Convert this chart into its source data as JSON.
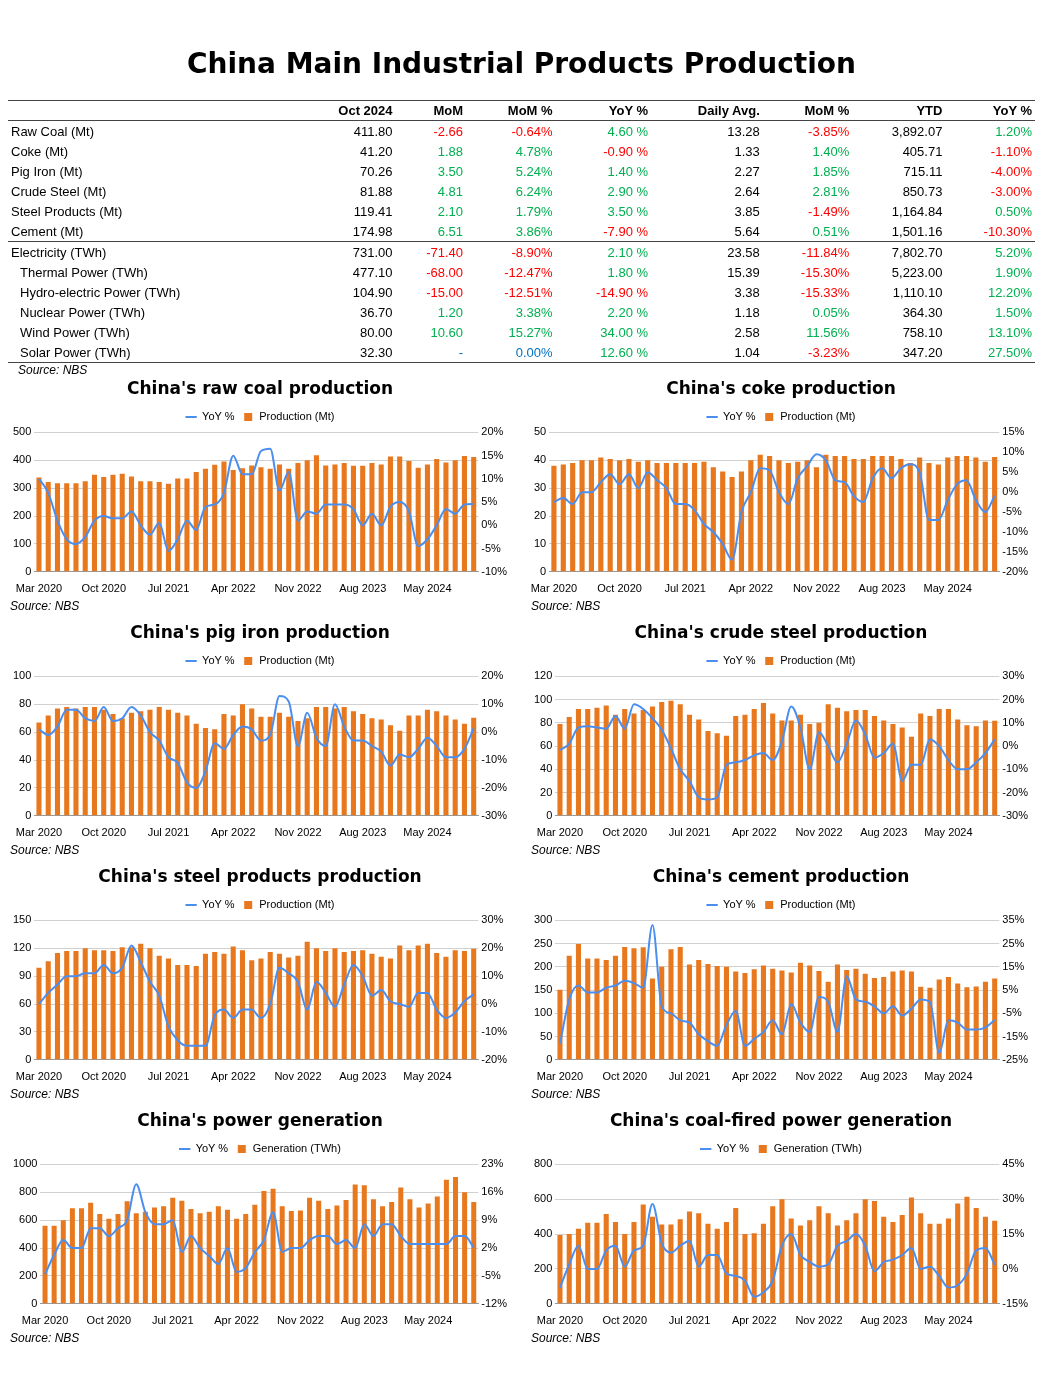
{
  "chart_data": [
    {
      "type": "other",
      "title": "China Main Industrial Products Production",
      "annotations": [
        "Source: NBS"
      ],
      "categories": [
        "Oct 2024",
        "MoM",
        "MoM %",
        "YoY %",
        "Daily Avg.",
        "MoM %",
        "YTD",
        "YoY %"
      ],
      "y_categories": [
        "Raw Coal (Mt)",
        "Coke (Mt)",
        "Pig Iron (Mt)",
        "Crude Steel (Mt)",
        "Steel Products (Mt)",
        "Cement (Mt)",
        "Electricity (TWh)",
        "Thermal Power (TWh)",
        "Hydro-electric Power (TWh)",
        "Nuclear Power (TWh)",
        "Wind Power (TWh)",
        "Solar Power (TWh)"
      ],
      "cell_labels": [
        [
          "411.80",
          "-2.66",
          "-0.64%",
          "4.60 %",
          "13.28",
          "-3.85%",
          "3,892.07",
          "1.20%"
        ],
        [
          "41.20",
          "1.88",
          "4.78%",
          "-0.90 %",
          "1.33",
          "1.40%",
          "405.71",
          "-1.10%"
        ],
        [
          "70.26",
          "3.50",
          "5.24%",
          "1.40 %",
          "2.27",
          "1.85%",
          "715.11",
          "-4.00%"
        ],
        [
          "81.88",
          "4.81",
          "6.24%",
          "2.90 %",
          "2.64",
          "2.81%",
          "850.73",
          "-3.00%"
        ],
        [
          "119.41",
          "2.10",
          "1.79%",
          "3.50 %",
          "3.85",
          "-1.49%",
          "1,164.84",
          "0.50%"
        ],
        [
          "174.98",
          "6.51",
          "3.86%",
          "-7.90 %",
          "5.64",
          "0.51%",
          "1,501.16",
          "-10.30%"
        ],
        [
          "731.00",
          "-71.40",
          "-8.90%",
          "2.10 %",
          "23.58",
          "-11.84%",
          "7,802.70",
          "5.20%"
        ],
        [
          "477.10",
          "-68.00",
          "-12.47%",
          "1.80 %",
          "15.39",
          "-15.30%",
          "5,223.00",
          "1.90%"
        ],
        [
          "104.90",
          "-15.00",
          "-12.51%",
          "-14.90 %",
          "3.38",
          "-15.33%",
          "1,110.10",
          "12.20%"
        ],
        [
          "36.70",
          "1.20",
          "3.38%",
          "2.20 %",
          "1.18",
          "0.05%",
          "364.30",
          "1.50%"
        ],
        [
          "80.00",
          "10.60",
          "15.27%",
          "34.00 %",
          "2.58",
          "11.56%",
          "758.10",
          "13.10%"
        ],
        [
          "32.30",
          "-",
          "0.00%",
          "12.60 %",
          "1.04",
          "-3.23%",
          "347.20",
          "27.50%"
        ]
      ],
      "colors": [
        [
          "#000000",
          "#ff0000",
          "#ff0000",
          "#00b050",
          "#000000",
          "#ff0000",
          "#000000",
          "#00b050"
        ],
        [
          "#000000",
          "#00b050",
          "#00b050",
          "#ff0000",
          "#000000",
          "#00b050",
          "#000000",
          "#ff0000"
        ],
        [
          "#000000",
          "#00b050",
          "#00b050",
          "#00b050",
          "#000000",
          "#00b050",
          "#000000",
          "#ff0000"
        ],
        [
          "#000000",
          "#00b050",
          "#00b050",
          "#00b050",
          "#000000",
          "#00b050",
          "#000000",
          "#ff0000"
        ],
        [
          "#000000",
          "#00b050",
          "#00b050",
          "#00b050",
          "#000000",
          "#ff0000",
          "#000000",
          "#00b050"
        ],
        [
          "#000000",
          "#00b050",
          "#00b050",
          "#ff0000",
          "#000000",
          "#00b050",
          "#000000",
          "#ff0000"
        ],
        [
          "#000000",
          "#ff0000",
          "#ff0000",
          "#00b050",
          "#000000",
          "#ff0000",
          "#000000",
          "#00b050"
        ],
        [
          "#000000",
          "#ff0000",
          "#ff0000",
          "#00b050",
          "#000000",
          "#ff0000",
          "#000000",
          "#00b050"
        ],
        [
          "#000000",
          "#ff0000",
          "#ff0000",
          "#ff0000",
          "#000000",
          "#ff0000",
          "#000000",
          "#00b050"
        ],
        [
          "#000000",
          "#00b050",
          "#00b050",
          "#00b050",
          "#000000",
          "#00b050",
          "#000000",
          "#00b050"
        ],
        [
          "#000000",
          "#00b050",
          "#00b050",
          "#00b050",
          "#000000",
          "#00b050",
          "#000000",
          "#00b050"
        ],
        [
          "#000000",
          "#0070c0",
          "#0070c0",
          "#00b050",
          "#000000",
          "#ff0000",
          "#000000",
          "#00b050"
        ]
      ]
    },
    {
      "type": "bar",
      "title": "China's raw coal production",
      "annotations": [
        "Source: NBS"
      ],
      "legend": "top",
      "grid": "y",
      "marker": "none",
      "categories": [
        "Mar 2020",
        null,
        null,
        null,
        null,
        null,
        null,
        "Oct 2020",
        null,
        null,
        null,
        null,
        null,
        null,
        "Jul 2021",
        null,
        null,
        null,
        null,
        null,
        null,
        "Apr 2022",
        null,
        null,
        null,
        null,
        null,
        null,
        "Nov 2022",
        null,
        null,
        null,
        null,
        null,
        null,
        "Aug 2023",
        null,
        null,
        null,
        null,
        null,
        null,
        "May 2024",
        null,
        null,
        null,
        null,
        null
      ],
      "ylim": [
        0,
        500
      ],
      "yticks": [
        0,
        100,
        200,
        300,
        400,
        500
      ],
      "y2lim": [
        -10,
        20
      ],
      "y2ticks": [
        {
          "value": -10,
          "label": "-10%"
        },
        {
          "value": -5,
          "label": "-5%"
        },
        {
          "value": 0,
          "label": "0%"
        },
        {
          "value": 5,
          "label": "5%"
        },
        {
          "value": 10,
          "label": "10%"
        },
        {
          "value": 15,
          "label": "15%"
        },
        {
          "value": 20,
          "label": "20%"
        }
      ],
      "series": [
        {
          "name": "Production (Mt)",
          "color": "#e8781e",
          "values": [
            338,
            322,
            318,
            318,
            318,
            325,
            348,
            340,
            348,
            352,
            342,
            325,
            325,
            322,
            316,
            335,
            335,
            358,
            370,
            384,
            396,
            365,
            371,
            381,
            375,
            370,
            385,
            370,
            390,
            400,
            418,
            381,
            385,
            390,
            380,
            380,
            390,
            385,
            414,
            414,
            397,
            373,
            385,
            405,
            392,
            400,
            415,
            411.8
          ]
        },
        {
          "name": "YoY %",
          "type": "line",
          "axis": "y2",
          "color": "#4a8ef0",
          "values": [
            10,
            7,
            1,
            -3,
            -4,
            -2.5,
            1,
            2,
            1.5,
            1.5,
            3,
            0,
            -2,
            0.5,
            -5.5,
            -3,
            1,
            -1,
            4,
            4.5,
            7,
            15,
            11,
            11,
            16,
            16.5,
            7.5,
            11.5,
            1,
            3,
            2.5,
            4.5,
            4.5,
            4.5,
            3.5,
            0,
            2.5,
            0,
            4,
            5,
            3,
            -4.5,
            -3,
            0,
            3.5,
            2.5,
            4.5,
            4.6
          ]
        }
      ]
    },
    {
      "type": "bar",
      "title": "China's coke production",
      "annotations": [
        "Source: NBS"
      ],
      "legend": "top",
      "grid": "y",
      "marker": "none",
      "categories": [
        "Mar 2020",
        null,
        null,
        null,
        null,
        null,
        null,
        "Oct 2020",
        null,
        null,
        null,
        null,
        null,
        null,
        "Jul 2021",
        null,
        null,
        null,
        null,
        null,
        null,
        "Apr 2022",
        null,
        null,
        null,
        null,
        null,
        null,
        "Nov 2022",
        null,
        null,
        null,
        null,
        null,
        null,
        "Aug 2023",
        null,
        null,
        null,
        null,
        null,
        null,
        "May 2024",
        null,
        null,
        null,
        null,
        null
      ],
      "ylim": [
        0,
        50
      ],
      "yticks": [
        0,
        10,
        20,
        30,
        40,
        50
      ],
      "y2lim": [
        -20,
        15
      ],
      "y2ticks": [
        {
          "value": -20,
          "label": "-20%"
        },
        {
          "value": -15,
          "label": "-15%"
        },
        {
          "value": -10,
          "label": "-10%"
        },
        {
          "value": -5,
          "label": "-5%"
        },
        {
          "value": 0,
          "label": "0%"
        },
        {
          "value": 5,
          "label": "5%"
        },
        {
          "value": 10,
          "label": "10%"
        },
        {
          "value": 15,
          "label": "15%"
        }
      ],
      "series": [
        {
          "name": "Production (Mt)",
          "color": "#e8781e",
          "values": [
            38,
            38.5,
            39,
            40,
            40,
            41,
            40.5,
            40,
            40.5,
            39.5,
            40,
            39,
            39,
            39,
            39,
            39,
            39.5,
            37.5,
            36,
            34,
            36,
            40,
            42,
            41.5,
            40,
            39,
            39.5,
            40,
            37.5,
            42,
            41.5,
            41.5,
            40.5,
            40.5,
            41.5,
            41.5,
            41.5,
            40.5,
            39,
            41,
            39,
            38.5,
            41,
            41.5,
            41.5,
            41,
            39.5,
            41.2
          ]
        },
        {
          "name": "YoY %",
          "type": "line",
          "axis": "y2",
          "color": "#4a8ef0",
          "values": [
            -2.5,
            -1.5,
            -3,
            0,
            0,
            2.5,
            4.5,
            2,
            4.5,
            1,
            5,
            3,
            1,
            -3,
            -3,
            -4.5,
            -8,
            -10,
            -13,
            -17,
            -5,
            0,
            6,
            5.5,
            0,
            -3,
            3.5,
            6.5,
            9.5,
            8,
            3,
            2.5,
            -1,
            -2.5,
            3.5,
            6,
            3.5,
            6,
            7,
            5,
            -7,
            -7,
            -2,
            2,
            3,
            -2,
            -5,
            -0.9
          ]
        }
      ]
    },
    {
      "type": "bar",
      "title": "China's pig iron production",
      "annotations": [
        "Source: NBS"
      ],
      "legend": "top",
      "grid": "y",
      "marker": "none",
      "categories": [
        "Mar 2020",
        null,
        null,
        null,
        null,
        null,
        null,
        "Oct 2020",
        null,
        null,
        null,
        null,
        null,
        null,
        "Jul 2021",
        null,
        null,
        null,
        null,
        null,
        null,
        "Apr 2022",
        null,
        null,
        null,
        null,
        null,
        null,
        "Nov 2022",
        null,
        null,
        null,
        null,
        null,
        null,
        "Aug 2023",
        null,
        null,
        null,
        null,
        null,
        null,
        "May 2024",
        null,
        null,
        null,
        null,
        null
      ],
      "ylim": [
        0,
        100
      ],
      "yticks": [
        0,
        20,
        40,
        60,
        80,
        100
      ],
      "y2lim": [
        -30,
        20
      ],
      "y2ticks": [
        {
          "value": -30,
          "label": "-30%"
        },
        {
          "value": -20,
          "label": "-20%"
        },
        {
          "value": -10,
          "label": "-10%"
        },
        {
          "value": 0,
          "label": "0%"
        },
        {
          "value": 10,
          "label": "10%"
        },
        {
          "value": 20,
          "label": "20%"
        }
      ],
      "series": [
        {
          "name": "Production (Mt)",
          "color": "#e8781e",
          "values": [
            67,
            72,
            77,
            78,
            77,
            78,
            78,
            76,
            73,
            70,
            74,
            75,
            76,
            78,
            76,
            74,
            72,
            66,
            63,
            62,
            73,
            72,
            80,
            77,
            71,
            71,
            74,
            71,
            68,
            70,
            78,
            78,
            77,
            78,
            75,
            73,
            70,
            69,
            65,
            61,
            72,
            72,
            76,
            75,
            72,
            69,
            66,
            70.26
          ]
        },
        {
          "name": "YoY %",
          "type": "line",
          "axis": "y2",
          "color": "#4a8ef0",
          "values": [
            1,
            -1,
            2,
            8,
            8,
            5,
            4,
            9,
            4,
            5,
            9,
            6,
            0,
            -3,
            -9,
            -11,
            -18,
            -20,
            -14,
            -4,
            -6,
            -1,
            2,
            1,
            -3,
            -1,
            13,
            11,
            -5,
            7,
            -2,
            -5,
            10,
            2,
            -3,
            -3,
            -5,
            -7,
            -12,
            -8,
            -9,
            -6,
            -2,
            -5,
            -9,
            -9,
            -6,
            1.4
          ]
        }
      ]
    },
    {
      "type": "bar",
      "title": "China's crude steel production",
      "annotations": [
        "Source: NBS"
      ],
      "legend": "top",
      "grid": "y",
      "marker": "none",
      "categories": [
        "Mar 2020",
        null,
        null,
        null,
        null,
        null,
        null,
        "Oct 2020",
        null,
        null,
        null,
        null,
        null,
        null,
        "Jul 2021",
        null,
        null,
        null,
        null,
        null,
        null,
        "Apr 2022",
        null,
        null,
        null,
        null,
        null,
        null,
        "Nov 2022",
        null,
        null,
        null,
        null,
        null,
        null,
        "Aug 2023",
        null,
        null,
        null,
        null,
        null,
        null,
        "May 2024",
        null,
        null,
        null,
        null,
        null
      ],
      "ylim": [
        0,
        120
      ],
      "yticks": [
        0,
        20,
        40,
        60,
        80,
        100,
        120
      ],
      "y2lim": [
        -30,
        30
      ],
      "y2ticks": [
        {
          "value": -30,
          "label": "-30%"
        },
        {
          "value": -20,
          "label": "-20%"
        },
        {
          "value": -10,
          "label": "-10%"
        },
        {
          "value": 0,
          "label": "0%"
        },
        {
          "value": 10,
          "label": "10%"
        },
        {
          "value": 20,
          "label": "20%"
        },
        {
          "value": 30,
          "label": "30%"
        }
      ],
      "series": [
        {
          "name": "Production (Mt)",
          "color": "#e8781e",
          "values": [
            79,
            85,
            92,
            92,
            93,
            95,
            87,
            92,
            88,
            91,
            94,
            98,
            99,
            96,
            87,
            83,
            73,
            71,
            69,
            86,
            87,
            92,
            97,
            88,
            82,
            82,
            87,
            79,
            80,
            96,
            93,
            90,
            91,
            91,
            86,
            82,
            79,
            76,
            68,
            88,
            86,
            92,
            92,
            83,
            78,
            77,
            82,
            81.88
          ]
        },
        {
          "name": "YoY %",
          "type": "line",
          "axis": "y2",
          "color": "#4a8ef0",
          "values": [
            -1.7,
            1,
            8,
            8.5,
            8,
            7.5,
            13,
            7.5,
            18,
            16,
            12,
            7,
            -1,
            -10,
            -15,
            -22,
            -23,
            -22,
            -8,
            -7,
            -6,
            -4,
            -3,
            -6,
            2,
            17,
            8,
            -10,
            6,
            0,
            -7,
            1,
            11,
            5,
            -5,
            -3,
            1,
            -15,
            -8,
            -8,
            3,
            0,
            -6,
            -10,
            -10,
            -7,
            -3,
            2.9
          ]
        }
      ]
    },
    {
      "type": "bar",
      "title": "China's steel products production",
      "annotations": [
        "Source: NBS"
      ],
      "legend": "top",
      "grid": "y",
      "marker": "none",
      "categories": [
        "Mar 2020",
        null,
        null,
        null,
        null,
        null,
        null,
        "Oct 2020",
        null,
        null,
        null,
        null,
        null,
        null,
        "Jul 2021",
        null,
        null,
        null,
        null,
        null,
        null,
        "Apr 2022",
        null,
        null,
        null,
        null,
        null,
        null,
        "Nov 2022",
        null,
        null,
        null,
        null,
        null,
        null,
        "Aug 2023",
        null,
        null,
        null,
        null,
        null,
        null,
        "May 2024",
        null,
        null,
        null,
        null,
        null
      ],
      "ylim": [
        0,
        150
      ],
      "yticks": [
        0,
        30,
        60,
        90,
        120,
        150
      ],
      "y2lim": [
        -20,
        30
      ],
      "y2ticks": [
        {
          "value": -20,
          "label": "-20%"
        },
        {
          "value": -10,
          "label": "-10%"
        },
        {
          "value": 0,
          "label": "0%"
        },
        {
          "value": 10,
          "label": "10%"
        },
        {
          "value": 20,
          "label": "20%"
        },
        {
          "value": 30,
          "label": "30%"
        }
      ],
      "series": [
        {
          "name": "Production (Mt)",
          "color": "#e8781e",
          "values": [
            99,
            106,
            115,
            117,
            117,
            120,
            118,
            118,
            117,
            121,
            121,
            125,
            120,
            112,
            109,
            102,
            102,
            101,
            114,
            116,
            114,
            122,
            118,
            107,
            109,
            116,
            114,
            110,
            112,
            127,
            120,
            117,
            120,
            116,
            117,
            118,
            114,
            111,
            109,
            123,
            118,
            123,
            125,
            115,
            111,
            118,
            117,
            119.41
          ]
        },
        {
          "name": "YoY %",
          "type": "line",
          "axis": "y2",
          "color": "#4a8ef0",
          "values": [
            0,
            4,
            7,
            10,
            10,
            11,
            11,
            14,
            11,
            13,
            21,
            15,
            8,
            3,
            -8,
            -13,
            -15,
            -15,
            -15,
            -4,
            -2,
            -5,
            -2,
            -2,
            -5,
            0,
            13,
            11,
            8,
            -2,
            8,
            4,
            -1,
            7,
            14,
            10,
            3,
            5,
            1,
            0,
            -1,
            4,
            4,
            -2,
            -5,
            -3,
            1,
            3.5
          ]
        }
      ]
    },
    {
      "type": "bar",
      "title": "China's cement production",
      "annotations": [
        "Source: NBS"
      ],
      "legend": "top",
      "grid": "y",
      "marker": "none",
      "categories": [
        "Mar 2020",
        null,
        null,
        null,
        null,
        null,
        null,
        "Oct 2020",
        null,
        null,
        null,
        null,
        null,
        null,
        "Jul 2021",
        null,
        null,
        null,
        null,
        null,
        null,
        "Apr 2022",
        null,
        null,
        null,
        null,
        null,
        null,
        "Nov 2022",
        null,
        null,
        null,
        null,
        null,
        null,
        "Aug 2023",
        null,
        null,
        null,
        null,
        null,
        null,
        "May 2024",
        null,
        null,
        null,
        null,
        null
      ],
      "ylim": [
        0,
        300
      ],
      "yticks": [
        0,
        50,
        100,
        150,
        200,
        250,
        300
      ],
      "y2lim": [
        -25,
        35
      ],
      "y2ticks": [
        {
          "value": -25,
          "label": "-25%"
        },
        {
          "value": -15,
          "label": "-15%"
        },
        {
          "value": -5,
          "label": "-5%"
        },
        {
          "value": 5,
          "label": "5%"
        },
        {
          "value": 15,
          "label": "15%"
        },
        {
          "value": 25,
          "label": "25%"
        },
        {
          "value": 35,
          "label": "35%"
        }
      ],
      "series": [
        {
          "name": "Production (Mt)",
          "color": "#e8781e",
          "values": [
            151,
            224,
            249,
            218,
            218,
            215,
            224,
            243,
            240,
            242,
            175,
            200,
            238,
            243,
            205,
            215,
            206,
            202,
            200,
            190,
            187,
            195,
            203,
            196,
            192,
            188,
            209,
            203,
            191,
            168,
            205,
            193,
            196,
            185,
            176,
            178,
            190,
            192,
            190,
            157,
            155,
            173,
            178,
            164,
            156,
            158,
            168,
            174.98
          ]
        },
        {
          "name": "YoY %",
          "type": "line",
          "axis": "y2",
          "color": "#4a8ef0",
          "values": [
            -18,
            1,
            7,
            4,
            4,
            6,
            7,
            9,
            8,
            6,
            33,
            -2,
            -5,
            -8,
            -9,
            -14,
            -17,
            -19,
            -10,
            -4,
            -19,
            -16,
            -13,
            -8,
            -14,
            -1,
            -9,
            -13,
            2,
            0,
            -13,
            11,
            1,
            0,
            -2,
            -5,
            -2,
            -6,
            -3,
            1,
            0,
            -22,
            -8,
            -9,
            -12,
            -12,
            -11,
            -7.9
          ]
        }
      ]
    },
    {
      "type": "bar",
      "title": "China's power generation",
      "annotations": [
        "Source: NBS"
      ],
      "legend": "top",
      "grid": "y",
      "marker": "none",
      "categories": [
        "Mar 2020",
        null,
        null,
        null,
        null,
        null,
        null,
        "Oct 2020",
        null,
        null,
        null,
        null,
        null,
        null,
        "Jul 2021",
        null,
        null,
        null,
        null,
        null,
        null,
        "Apr 2022",
        null,
        null,
        null,
        null,
        null,
        null,
        "Nov 2022",
        null,
        null,
        null,
        null,
        null,
        null,
        "Aug 2023",
        null,
        null,
        null,
        null,
        null,
        null,
        "May 2024",
        null,
        null,
        null,
        null,
        null
      ],
      "ylim": [
        0,
        1000
      ],
      "yticks": [
        0,
        200,
        400,
        600,
        800,
        1000
      ],
      "y2lim": [
        -12,
        23
      ],
      "y2ticks": [
        {
          "value": -12,
          "label": "-12%"
        },
        {
          "value": -5,
          "label": "-5%"
        },
        {
          "value": 2,
          "label": "2%"
        },
        {
          "value": 9,
          "label": "9%"
        },
        {
          "value": 16,
          "label": "16%"
        },
        {
          "value": 23,
          "label": "23%"
        }
      ],
      "series": [
        {
          "name": "Generation (TWh)",
          "color": "#e8781e",
          "values": [
            560,
            560,
            600,
            685,
            685,
            725,
            645,
            610,
            645,
            735,
            650,
            660,
            690,
            700,
            760,
            740,
            680,
            650,
            660,
            700,
            675,
            610,
            645,
            710,
            810,
            825,
            700,
            665,
            670,
            760,
            740,
            680,
            705,
            745,
            855,
            850,
            750,
            700,
            730,
            835,
            750,
            690,
            720,
            770,
            890,
            910,
            800,
            731
          ]
        },
        {
          "name": "YoY %",
          "type": "line",
          "axis": "y2",
          "color": "#4a8ef0",
          "values": [
            -4.6,
            0.3,
            4,
            2,
            2,
            7,
            7,
            5,
            7,
            9,
            18,
            11,
            8,
            8,
            9,
            1,
            5,
            2,
            0,
            -2,
            2,
            -4,
            -3,
            1,
            4,
            11,
            1,
            2,
            2,
            4,
            5,
            5,
            3,
            4,
            2,
            8,
            5,
            8,
            8,
            5,
            3,
            3,
            3,
            3,
            3,
            5,
            5,
            2.1
          ]
        }
      ]
    },
    {
      "type": "bar",
      "title": "China's coal-fired power generation",
      "annotations": [
        "Source: NBS"
      ],
      "legend": "top",
      "grid": "y",
      "marker": "none",
      "categories": [
        "Mar 2020",
        null,
        null,
        null,
        null,
        null,
        null,
        "Oct 2020",
        null,
        null,
        null,
        null,
        null,
        null,
        "Jul 2021",
        null,
        null,
        null,
        null,
        null,
        null,
        "Apr 2022",
        null,
        null,
        null,
        null,
        null,
        null,
        "Nov 2022",
        null,
        null,
        null,
        null,
        null,
        null,
        "Aug 2023",
        null,
        null,
        null,
        null,
        null,
        null,
        "May 2024",
        null,
        null,
        null,
        null,
        null
      ],
      "ylim": [
        0,
        800
      ],
      "yticks": [
        0,
        200,
        400,
        600,
        800
      ],
      "y2lim": [
        -15,
        45
      ],
      "y2ticks": [
        {
          "value": -15,
          "label": "-15%"
        },
        {
          "value": 0,
          "label": "0%"
        },
        {
          "value": 15,
          "label": "15%"
        },
        {
          "value": 30,
          "label": "30%"
        },
        {
          "value": 45,
          "label": "45%"
        }
      ],
      "series": [
        {
          "name": "Generation (TWh)",
          "color": "#e8781e",
          "values": [
            395,
            400,
            430,
            465,
            465,
            515,
            470,
            400,
            470,
            570,
            500,
            455,
            455,
            485,
            530,
            520,
            460,
            430,
            470,
            550,
            400,
            405,
            460,
            560,
            600,
            490,
            450,
            480,
            560,
            520,
            450,
            480,
            520,
            600,
            590,
            500,
            470,
            510,
            610,
            520,
            460,
            460,
            490,
            575,
            615,
            550,
            500,
            477.1
          ]
        },
        {
          "name": "YoY %",
          "type": "line",
          "axis": "y2",
          "color": "#4a8ef0",
          "values": [
            -8,
            2,
            10,
            0,
            0,
            8,
            10,
            1,
            8,
            10,
            28,
            11,
            7,
            10,
            12,
            1,
            6,
            6,
            -2,
            -3,
            -5,
            -12,
            -10,
            -5,
            10,
            15,
            6,
            3,
            1,
            2,
            10,
            12,
            15,
            10,
            -1,
            3,
            4,
            6,
            9,
            0,
            1,
            -3,
            -8,
            -7,
            -2,
            8,
            9,
            1.8
          ]
        }
      ]
    }
  ]
}
